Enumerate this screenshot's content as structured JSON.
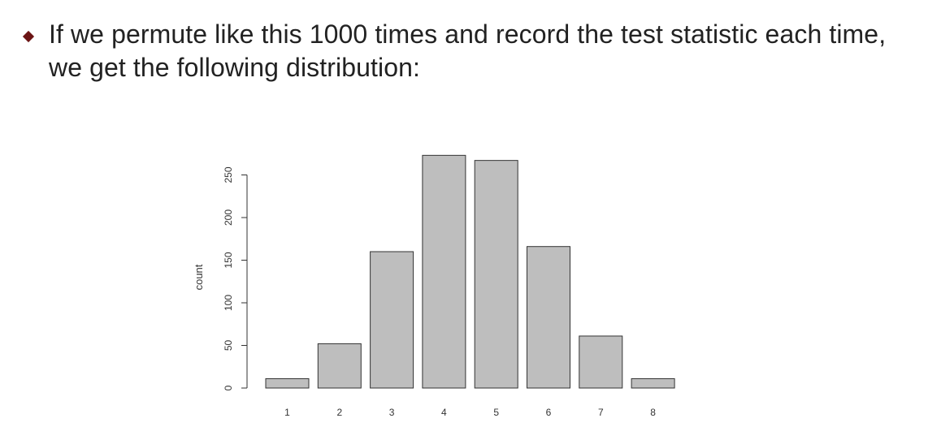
{
  "slide": {
    "bullet": "If we permute like this 1000 times and record the test statistic each time, we get the following distribution:"
  },
  "colors": {
    "bullet_marker": "#6b1414",
    "bar_fill": "#bebebe",
    "bar_stroke": "#333333"
  },
  "chart_data": {
    "type": "bar",
    "categories": [
      "1",
      "2",
      "3",
      "4",
      "5",
      "6",
      "7",
      "8"
    ],
    "values": [
      11,
      52,
      160,
      273,
      267,
      166,
      61,
      11
    ],
    "title": "",
    "xlabel": "",
    "ylabel": "count",
    "ylim": [
      0,
      280
    ],
    "yticks": [
      0,
      50,
      100,
      150,
      200,
      250
    ],
    "grid": false
  }
}
